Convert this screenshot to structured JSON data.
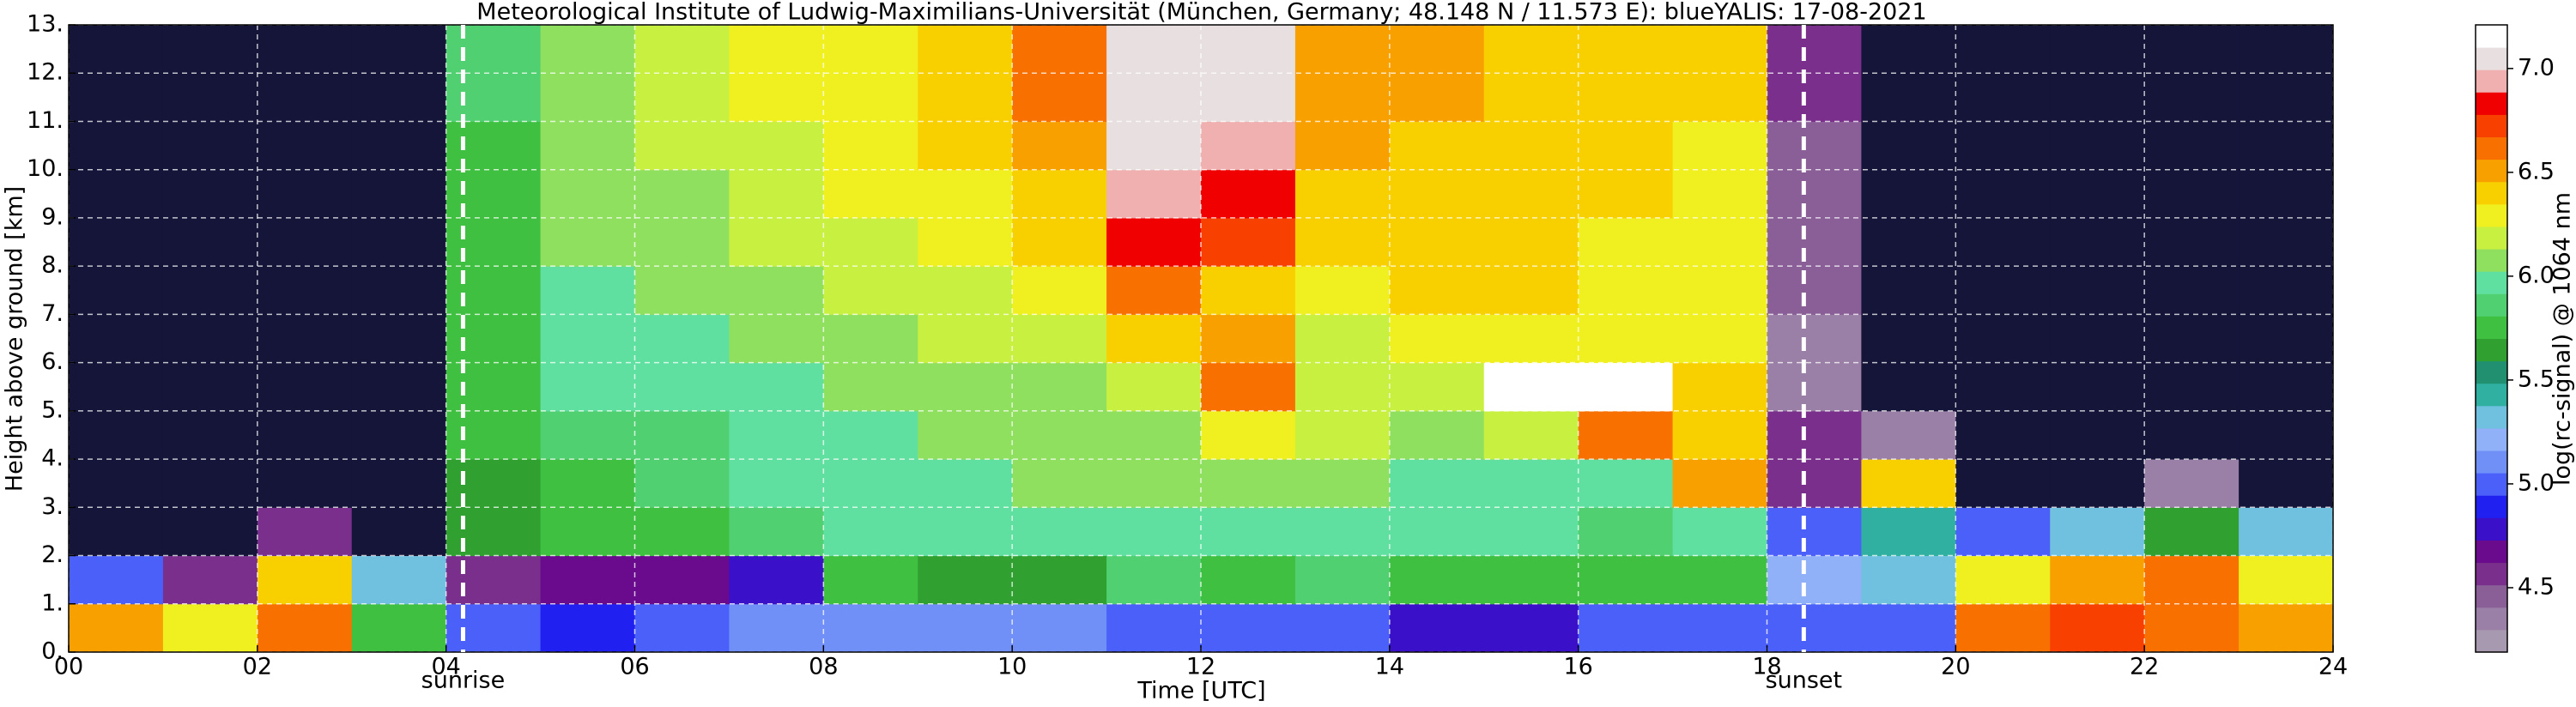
{
  "chart_data": {
    "type": "heatmap",
    "title": "Meteorological Institute of Ludwig-Maximilians-Universität (München, Germany; 48.148 N / 11.573 E):    blueYALIS: 17-08-2021",
    "x_label": "Time [UTC]",
    "y_label": "Height above ground [km]",
    "colorbar_label": "log(rc-signal) @ 1064 nm",
    "xlim": [
      0,
      24
    ],
    "ylim": [
      0,
      13
    ],
    "xticks": [
      {
        "value": 0,
        "label": "00"
      },
      {
        "value": 2,
        "label": "02"
      },
      {
        "value": 4,
        "label": "04"
      },
      {
        "value": 6,
        "label": "06"
      },
      {
        "value": 8,
        "label": "08"
      },
      10,
      12,
      14,
      16,
      18,
      20,
      22,
      24
    ],
    "yticks": [
      {
        "value": 0,
        "label": "0."
      },
      {
        "value": 1,
        "label": "1."
      },
      {
        "value": 2,
        "label": "2."
      },
      {
        "value": 3,
        "label": "3."
      },
      {
        "value": 4,
        "label": "4."
      },
      {
        "value": 5,
        "label": "5."
      },
      {
        "value": 6,
        "label": "6."
      },
      {
        "value": 7,
        "label": "7."
      },
      {
        "value": 8,
        "label": "8."
      },
      {
        "value": 9,
        "label": "9."
      },
      {
        "value": 10,
        "label": "10."
      },
      {
        "value": 11,
        "label": "11."
      },
      {
        "value": 12,
        "label": "12."
      },
      {
        "value": 13,
        "label": "13."
      }
    ],
    "zlim": [
      4.19,
      7.21
    ],
    "zticks": [
      {
        "value": 4.5,
        "label": "4.5"
      },
      {
        "value": 5,
        "label": "5.0"
      },
      {
        "value": 5.5,
        "label": "5.5"
      },
      {
        "value": 6,
        "label": "6.0"
      },
      {
        "value": 6.5,
        "label": "6.5"
      },
      {
        "value": 7,
        "label": "7.0"
      }
    ],
    "colorscale": [
      "#a79ab0",
      "#9a7fa6",
      "#8a5f98",
      "#7a2f8c",
      "#6a0a8c",
      "#3a10c8",
      "#2020f0",
      "#4a60f8",
      "#7090f8",
      "#90b0f8",
      "#70c0e0",
      "#30b0a0",
      "#209070",
      "#30a030",
      "#40c040",
      "#50d070",
      "#60e0a0",
      "#90e060",
      "#c8f040",
      "#f0f020",
      "#f8d000",
      "#f8a000",
      "#f87000",
      "#f84000",
      "#f00000",
      "#f0b0b0",
      "#e8e0e0",
      "#ffffff"
    ],
    "under_color": "#15153a",
    "grid": true,
    "annotations": [
      {
        "text": "sunrise",
        "x": 4.18
      },
      {
        "text": "sunset",
        "x": 18.39
      }
    ],
    "z": [
      [
        6.5,
        6.3,
        6.6,
        5.8,
        5.0,
        4.9,
        5.0,
        5.1,
        5.1,
        5.1,
        5.1,
        5.0,
        5.0,
        5.0,
        4.8,
        4.8,
        5.0,
        5.0,
        5.0,
        5.0,
        6.6,
        6.7,
        6.6,
        6.5
      ],
      [
        5.0,
        4.6,
        6.4,
        5.3,
        4.6,
        4.7,
        4.7,
        4.8,
        5.8,
        5.6,
        5.6,
        5.9,
        5.8,
        5.9,
        5.8,
        5.7,
        5.8,
        5.8,
        5.2,
        5.3,
        6.3,
        6.5,
        6.6,
        6.3
      ],
      [
        4.0,
        4.0,
        4.6,
        4.0,
        5.6,
        5.7,
        5.8,
        5.9,
        6.0,
        6.0,
        6.0,
        6.0,
        6.0,
        6.0,
        6.0,
        6.0,
        5.9,
        6.0,
        5.0,
        5.4,
        5.0,
        5.3,
        5.6,
        5.3
      ],
      [
        4.0,
        4.0,
        4.0,
        4.0,
        5.6,
        5.8,
        5.9,
        6.0,
        6.0,
        6.0,
        6.1,
        6.1,
        6.1,
        6.1,
        6.0,
        6.0,
        6.0,
        6.5,
        4.6,
        6.4,
        4.1,
        4.1,
        4.4,
        4.1
      ],
      [
        4.1,
        4.1,
        4.1,
        4.1,
        5.7,
        5.9,
        5.9,
        6.0,
        6.0,
        6.1,
        6.1,
        6.1,
        6.3,
        6.2,
        6.1,
        6.2,
        6.6,
        6.4,
        4.6,
        4.4,
        4.1,
        4.1,
        4.1,
        4.1
      ],
      [
        4.1,
        4.1,
        4.1,
        4.1,
        5.7,
        6.0,
        6.0,
        6.0,
        6.1,
        6.1,
        6.1,
        6.2,
        6.6,
        6.2,
        6.2,
        7.2,
        7.2,
        6.4,
        4.4,
        4.1,
        4.1,
        4.1,
        4.1,
        4.1
      ],
      [
        4.1,
        4.1,
        4.1,
        4.1,
        5.7,
        6.0,
        6.0,
        6.1,
        6.1,
        6.2,
        6.2,
        6.4,
        6.5,
        6.2,
        6.3,
        6.3,
        6.3,
        6.3,
        4.4,
        4.1,
        4.1,
        4.1,
        4.1,
        4.1
      ],
      [
        4.1,
        4.1,
        4.1,
        4.1,
        5.8,
        6.0,
        6.1,
        6.1,
        6.2,
        6.2,
        6.3,
        6.6,
        6.4,
        6.3,
        6.4,
        6.4,
        6.3,
        6.3,
        4.5,
        4.1,
        4.1,
        4.1,
        4.1,
        4.1
      ],
      [
        4.1,
        4.1,
        4.1,
        4.1,
        5.8,
        6.1,
        6.1,
        6.2,
        6.2,
        6.3,
        6.4,
        6.8,
        6.7,
        6.4,
        6.4,
        6.4,
        6.3,
        6.3,
        4.5,
        4.1,
        4.1,
        4.1,
        4.1,
        4.1
      ],
      [
        4.1,
        4.1,
        4.1,
        4.1,
        5.8,
        6.1,
        6.1,
        6.2,
        6.3,
        6.3,
        6.4,
        6.9,
        6.8,
        6.4,
        6.4,
        6.4,
        6.4,
        6.3,
        4.5,
        4.1,
        4.1,
        4.1,
        4.1,
        4.1
      ],
      [
        4.1,
        4.1,
        4.1,
        4.1,
        5.8,
        6.1,
        6.2,
        6.2,
        6.3,
        6.4,
        6.5,
        7.0,
        6.9,
        6.5,
        6.4,
        6.4,
        6.4,
        6.3,
        4.5,
        4.1,
        4.1,
        4.1,
        4.1,
        4.1
      ],
      [
        4.1,
        4.1,
        4.1,
        4.1,
        5.9,
        6.1,
        6.2,
        6.3,
        6.3,
        6.4,
        6.6,
        7.0,
        7.0,
        6.5,
        6.5,
        6.4,
        6.4,
        6.4,
        4.6,
        4.1,
        4.1,
        4.1,
        4.1,
        4.1
      ],
      [
        4.1,
        4.1,
        4.1,
        4.1,
        5.9,
        6.1,
        6.2,
        6.3,
        6.3,
        6.4,
        6.6,
        7.0,
        7.0,
        6.5,
        6.5,
        6.4,
        6.4,
        6.4,
        4.6,
        4.1,
        4.1,
        4.1,
        4.1,
        4.1
      ]
    ]
  }
}
